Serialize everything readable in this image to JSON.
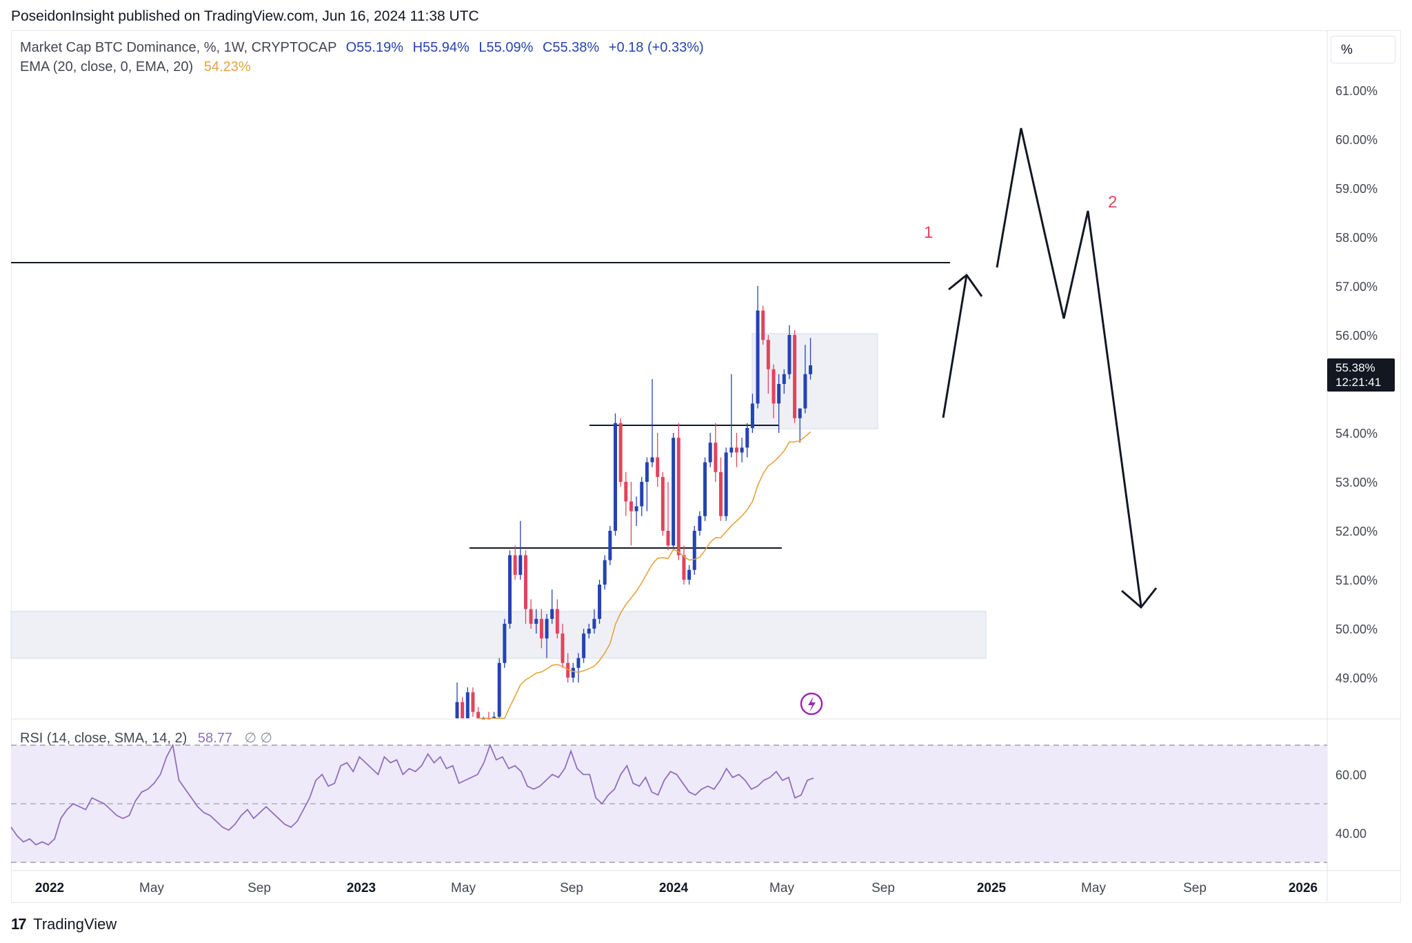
{
  "header": {
    "published_line": "PoseidonInsight published on TradingView.com, Jun 16, 2024 11:38 UTC"
  },
  "legend": {
    "symbol": "Market Cap BTC Dominance, %, 1W, CRYPTOCAP",
    "open": "O55.19%",
    "high": "H55.94%",
    "low": "L55.09%",
    "close": "C55.38%",
    "change": "+0.18 (+0.33%)",
    "ema_label": "EMA (20, close, 0, EMA, 20)",
    "ema_value": "54.23%",
    "rsi_label": "RSI (14, close, SMA, 14, 2)",
    "rsi_value": "58.77",
    "rsi_symbols": "∅ ∅"
  },
  "unit_button": "%",
  "current_price": {
    "value": "55.38%",
    "countdown": "12:21:41"
  },
  "annotations": {
    "label_1": "1",
    "label_2": "2"
  },
  "footer": {
    "logo_glyph": "17",
    "brand": "TradingView"
  },
  "colors": {
    "up_candle": "#2443b3",
    "down_candle": "#e2445c",
    "ema_line": "#e6a23c",
    "rsi_line": "#8e6fbd",
    "rsi_band": "#efeafa",
    "zone_fill": "#eef0f6",
    "annotation_red": "#e2445c"
  },
  "chart_data": {
    "type": "candlestick",
    "symbol": "Market Cap BTC Dominance, %, 1W, CRYPTOCAP",
    "y_range": [
      48.2,
      62.1
    ],
    "y_ticks": [
      "61.00%",
      "60.00%",
      "59.00%",
      "58.00%",
      "57.00%",
      "56.00%",
      "54.00%",
      "53.00%",
      "52.00%",
      "51.00%",
      "50.00%",
      "49.00%"
    ],
    "x_ticks": [
      "2022",
      "May",
      "Sep",
      "2023",
      "May",
      "Sep",
      "2024",
      "May",
      "Sep",
      "2025",
      "May",
      "Sep",
      "2026"
    ],
    "candles_ohlc": [
      [
        48.1,
        48.9,
        47.8,
        48.5
      ],
      [
        48.5,
        48.6,
        48.0,
        48.1
      ],
      [
        48.1,
        48.8,
        47.9,
        48.7
      ],
      [
        48.7,
        48.8,
        48.2,
        48.3
      ],
      [
        48.3,
        48.4,
        47.8,
        47.9
      ],
      [
        47.9,
        48.2,
        47.6,
        48.1
      ],
      [
        48.1,
        48.3,
        47.8,
        47.9
      ],
      [
        47.9,
        48.3,
        47.7,
        48.2
      ],
      [
        48.2,
        49.4,
        48.1,
        49.3
      ],
      [
        49.3,
        50.2,
        49.2,
        50.1
      ],
      [
        50.1,
        51.6,
        50.0,
        51.5
      ],
      [
        51.5,
        51.7,
        51.0,
        51.1
      ],
      [
        51.1,
        52.2,
        51.0,
        51.5
      ],
      [
        51.5,
        51.6,
        50.1,
        50.4
      ],
      [
        50.4,
        50.6,
        50.0,
        50.1
      ],
      [
        50.1,
        50.4,
        49.9,
        50.2
      ],
      [
        50.2,
        50.4,
        49.6,
        49.8
      ],
      [
        49.8,
        50.3,
        49.4,
        50.2
      ],
      [
        50.2,
        50.8,
        50.1,
        50.4
      ],
      [
        50.4,
        50.6,
        49.8,
        49.9
      ],
      [
        49.9,
        50.1,
        49.2,
        49.3
      ],
      [
        49.3,
        49.5,
        48.9,
        49.0
      ],
      [
        49.0,
        49.3,
        48.9,
        49.2
      ],
      [
        49.2,
        49.5,
        48.9,
        49.4
      ],
      [
        49.4,
        50.0,
        49.3,
        49.9
      ],
      [
        49.9,
        50.1,
        49.8,
        50.0
      ],
      [
        50.0,
        50.4,
        49.9,
        50.2
      ],
      [
        50.2,
        51.0,
        50.1,
        50.9
      ],
      [
        50.9,
        51.5,
        50.8,
        51.4
      ],
      [
        51.4,
        52.1,
        51.3,
        52.0
      ],
      [
        52.0,
        54.4,
        51.9,
        54.2
      ],
      [
        54.2,
        54.3,
        52.9,
        53.0
      ],
      [
        53.0,
        53.2,
        52.3,
        52.6
      ],
      [
        52.6,
        53.0,
        51.7,
        52.4
      ],
      [
        52.4,
        52.7,
        52.1,
        52.5
      ],
      [
        52.5,
        53.1,
        52.3,
        53.0
      ],
      [
        53.0,
        53.5,
        52.4,
        53.4
      ],
      [
        53.4,
        55.1,
        53.3,
        53.5
      ],
      [
        53.5,
        54.0,
        52.9,
        53.1
      ],
      [
        53.1,
        53.2,
        51.9,
        52.0
      ],
      [
        52.0,
        53.0,
        51.6,
        51.7
      ],
      [
        51.7,
        54.0,
        51.6,
        53.9
      ],
      [
        53.9,
        54.2,
        51.4,
        51.5
      ],
      [
        51.5,
        51.7,
        50.9,
        51.0
      ],
      [
        51.0,
        51.3,
        50.9,
        51.2
      ],
      [
        51.2,
        52.1,
        51.1,
        52.0
      ],
      [
        52.0,
        52.4,
        51.9,
        52.3
      ],
      [
        52.3,
        53.5,
        52.2,
        53.4
      ],
      [
        53.4,
        54.0,
        53.3,
        53.8
      ],
      [
        53.8,
        54.2,
        53.0,
        53.2
      ],
      [
        53.2,
        53.5,
        52.2,
        52.3
      ],
      [
        52.3,
        53.7,
        52.2,
        53.6
      ],
      [
        53.6,
        55.2,
        53.5,
        53.7
      ],
      [
        53.7,
        54.0,
        53.3,
        53.6
      ],
      [
        53.6,
        53.9,
        53.4,
        53.7
      ],
      [
        53.7,
        54.2,
        53.5,
        54.1
      ],
      [
        54.1,
        54.8,
        54.0,
        54.6
      ],
      [
        54.6,
        57.0,
        54.5,
        56.5
      ],
      [
        56.5,
        56.6,
        55.8,
        55.9
      ],
      [
        55.9,
        56.0,
        54.8,
        55.3
      ],
      [
        55.3,
        55.4,
        54.3,
        54.6
      ],
      [
        54.6,
        55.2,
        54.0,
        55.0
      ],
      [
        55.0,
        55.3,
        54.8,
        55.2
      ],
      [
        55.2,
        56.2,
        55.1,
        56.0
      ],
      [
        56.0,
        56.1,
        54.2,
        54.3
      ],
      [
        54.3,
        54.5,
        53.8,
        54.5
      ],
      [
        54.5,
        55.8,
        54.4,
        55.2
      ],
      [
        55.2,
        55.94,
        55.09,
        55.38
      ]
    ],
    "ema_20_last": 54.23,
    "rsi_14_last": 58.77,
    "rsi_axis_ticks": [
      "60.00",
      "40.00"
    ],
    "rsi_series": [
      42,
      39,
      37,
      38,
      36,
      37,
      36,
      38,
      45,
      48,
      50,
      49,
      48,
      52,
      51,
      50,
      48,
      46,
      45,
      46,
      51,
      54,
      55,
      57,
      60,
      66,
      70,
      58,
      55,
      52,
      49,
      47,
      46,
      44,
      42,
      41,
      43,
      46,
      48,
      45,
      47,
      49,
      47,
      45,
      43,
      42,
      44,
      48,
      52,
      58,
      60,
      56,
      57,
      63,
      64,
      61,
      66,
      64,
      62,
      60,
      66,
      64,
      65,
      60,
      62,
      61,
      63,
      67,
      64,
      66,
      62,
      63,
      57,
      58,
      59,
      60,
      64,
      70,
      65,
      66,
      62,
      63,
      61,
      56,
      55,
      56,
      58,
      60,
      59,
      62,
      68,
      62,
      60,
      60,
      52,
      50,
      53,
      55,
      60,
      63,
      57,
      56,
      59,
      54,
      53,
      58,
      61,
      60,
      57,
      54,
      53,
      55,
      56,
      55,
      58,
      62,
      59,
      60,
      58,
      55,
      56,
      58,
      59,
      61,
      58,
      59,
      52,
      53,
      58,
      58.77
    ]
  }
}
